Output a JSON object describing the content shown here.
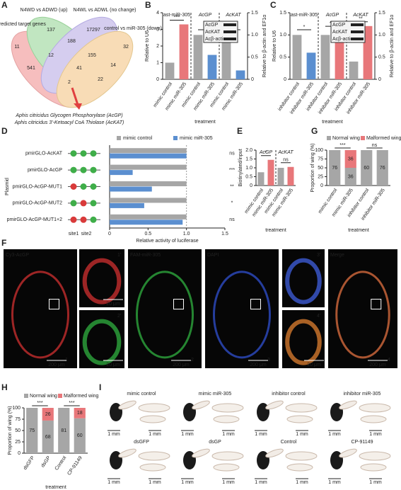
{
  "panel_labels": [
    "A",
    "B",
    "C",
    "D",
    "E",
    "F",
    "G",
    "H",
    "I"
  ],
  "venn": {
    "sets": [
      "predicted target genes",
      "N4WD vs ADWD (up)",
      "N4WL vs ADWL (no change)",
      "control vs miR-305 (down)"
    ],
    "counts": [
      11,
      137,
      17297,
      32,
      188,
      155,
      541,
      12,
      41,
      2,
      22,
      14
    ],
    "genes": [
      "Aphis citricidus Glycogen Phosphorylase (AcGP)",
      "Aphis citricidus 3'-Ketoacyl CoA Thiolase (AcKAT)"
    ]
  },
  "chart_data": [
    {
      "type": "bar",
      "ylabel": "Relative to U6",
      "y2label": "Relative to β-actin and EF1α",
      "xlabel": "treatment",
      "ylim": [
        0,
        4
      ],
      "yticks": [
        0,
        1,
        2,
        3,
        4
      ],
      "y2lim": [
        0,
        1.5
      ],
      "y2ticks": [
        0,
        0.5,
        {
          "value": 1,
          "label": "1.0"
        },
        1.5
      ],
      "groups": [
        "ast-miR-305",
        "AcGP",
        "AcKAT"
      ],
      "categories": [
        "mimic control",
        "mimic miR-305",
        "mimic control",
        "mimic miR-305",
        "mimic control",
        "mimic miR-305"
      ],
      "values": [
        1,
        3.3,
        1,
        0.55,
        1,
        0.2
      ],
      "axes": [
        "y",
        "y",
        "y2",
        "y2",
        "y2",
        "y2"
      ],
      "colors": [
        "#a6a6a6",
        "#e8777a",
        "#a6a6a6",
        "#5b8fd0",
        "#a6a6a6",
        "#5b8fd0"
      ],
      "significance": [
        "***",
        "*",
        "**"
      ],
      "blot": [
        "AcGP",
        "AcKAT",
        "Acβ-actin"
      ]
    },
    {
      "type": "bar",
      "ylabel": "Relative to U6",
      "y2label": "Relative to β-actin and EF1α",
      "xlabel": "treatment",
      "ylim": [
        0,
        1.5
      ],
      "yticks": [
        0,
        0.5,
        {
          "value": 1,
          "label": "1.0"
        },
        1.5
      ],
      "y2lim": [
        0,
        1.5
      ],
      "y2ticks": [
        0,
        0.5,
        {
          "value": 1,
          "label": "1.0"
        },
        1.5
      ],
      "groups": [
        "ast-miR-305",
        "AcGP",
        "AcKAT"
      ],
      "categories": [
        "inhibitor control",
        "inhibitor miR-305",
        "inhibitor control",
        "inhibitor miR-305",
        "inhibitor control",
        "inhibitor miR-305"
      ],
      "values": [
        1,
        0.6,
        1,
        1.1,
        0.4,
        1.2
      ],
      "axes": [
        "y",
        "y",
        "y2",
        "y2",
        "y2",
        "y2"
      ],
      "colors": [
        "#a6a6a6",
        "#5b8fd0",
        "#a6a6a6",
        "#e8777a",
        "#a6a6a6",
        "#e8777a"
      ],
      "significance": [
        "*",
        "***",
        "**"
      ],
      "blot": [
        "AcGP",
        "AcKAT",
        "Acβ-actin"
      ]
    },
    {
      "type": "hbar",
      "ylabel": "Plasmid",
      "xlabel": "Relative activity of luciferase",
      "categories": [
        "pmirGLO-AcKAT",
        "pmirGLO-AcGP",
        "pmirGLO-AcGP-MUT1",
        "pmirGLO-AcGP-MUT2",
        "pmirGLO-AcGP-MUT1+2"
      ],
      "series": [
        {
          "name": "mimic control",
          "color": "#a6a6a6",
          "values": [
            1,
            1,
            1,
            1,
            1
          ]
        },
        {
          "name": "mimic miR-305",
          "color": "#5b8fd0",
          "values": [
            1,
            0.3,
            0.55,
            0.45,
            0.95
          ]
        }
      ],
      "xlim": [
        0,
        1.5
      ],
      "xticks": [
        0,
        0.5,
        {
          "value": 1,
          "label": "1.0"
        },
        1.5
      ],
      "significance": [
        "ns",
        "***",
        "**",
        "*",
        "ns"
      ],
      "sites": [
        "site1",
        "site2"
      ]
    },
    {
      "type": "bar",
      "ylabel": "Biotinylated/input",
      "xlabel": "treatment",
      "ylim": [
        0,
        2
      ],
      "yticks": [
        0,
        0.5,
        {
          "value": 1,
          "label": "1.0"
        },
        1.5,
        {
          "value": 2,
          "label": "2.0"
        }
      ],
      "groups": [
        "AcGP",
        "AcKAT"
      ],
      "categories": [
        "mimic control",
        "mimic miR-305",
        "mimic control",
        "mimic miR-305"
      ],
      "values": [
        0.75,
        1.45,
        1,
        1.05
      ],
      "colors": [
        "#a6a6a6",
        "#e8777a",
        "#a6a6a6",
        "#e8777a"
      ],
      "significance": [
        "*",
        "ns"
      ]
    },
    {
      "type": "stacked",
      "ylabel": "Proportion of wing (%)",
      "xlabel": "treatment",
      "categories": [
        "mimic control",
        "mimic miR-305",
        "inhibitor control",
        "inhibitor miR-305"
      ],
      "series": [
        {
          "name": "Normal wing",
          "color": "#a6a6a6",
          "values": [
            100,
            50,
            100,
            100
          ],
          "counts": [
            76,
            36,
            60,
            76
          ]
        },
        {
          "name": "Malformed wing",
          "color": "#e8777a",
          "values": [
            0,
            50,
            0,
            0
          ],
          "counts": [
            null,
            36,
            null,
            null
          ]
        }
      ],
      "ylim": [
        0,
        100
      ],
      "yticks": [
        0,
        25,
        50,
        75,
        100
      ],
      "significance": [
        "***",
        "ns"
      ]
    },
    {
      "type": "stacked",
      "ylabel": "Proportion of wing (%)",
      "xlabel": "treatment",
      "categories": [
        "dsGFP",
        "dsGP",
        "Control",
        "CP-91149"
      ],
      "series": [
        {
          "name": "Normal wing",
          "color": "#a6a6a6",
          "values": [
            100,
            72,
            100,
            77
          ],
          "counts": [
            75,
            68,
            81,
            60
          ]
        },
        {
          "name": "Malformed wing",
          "color": "#e8777a",
          "values": [
            0,
            28,
            0,
            23
          ],
          "counts": [
            null,
            26,
            null,
            18
          ]
        }
      ],
      "ylim": [
        0,
        100
      ],
      "yticks": [
        0,
        25,
        50,
        75,
        100
      ],
      "significance": [
        "***",
        "***"
      ]
    }
  ],
  "images": {
    "F": {
      "channels": [
        "Cy3-AcGP",
        "FAM-miR-305",
        "DAPI",
        "Merge"
      ],
      "marks": [
        "1",
        "1'",
        "2'",
        "2",
        "3",
        "3'",
        "4'",
        "4"
      ],
      "scale_bars": [
        "200 μm",
        "20 μm",
        "20 μm",
        "200 μm",
        "200 μm",
        "20 μm",
        "200 μm"
      ]
    },
    "I": {
      "labels": [
        "mimic control",
        "mimic miR-305",
        "inhibitor control",
        "inhibitor miR-305",
        "dsGFP",
        "dsGP",
        "Control",
        "CP-91149"
      ],
      "scale": "1 mm"
    }
  }
}
